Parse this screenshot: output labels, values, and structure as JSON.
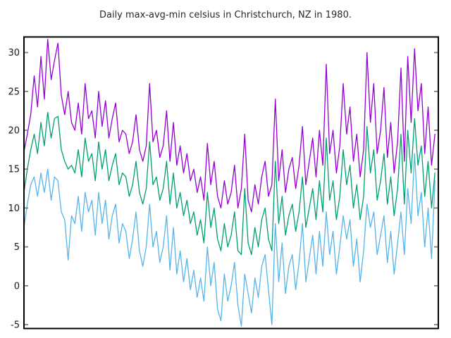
{
  "chart": {
    "title": "Daily max-avg-min celsius in Christchurch, NZ in 1980.",
    "background": "#ffffff",
    "border_color": "#000000",
    "tick_color": "#7f7f7f",
    "label_color": "#1a1a1a",
    "title_color": "#262626"
  },
  "chart_data": {
    "type": "line",
    "title": "Daily max-avg-min celsius in Christchurch, NZ in 1980.",
    "xlabel": "",
    "ylabel": "",
    "x_unit": "day of year 1980",
    "x_step_days": 3,
    "xlim": [
      0,
      366
    ],
    "ylim": [
      -5.5,
      32
    ],
    "yticks": [
      -5,
      0,
      5,
      10,
      15,
      20,
      25,
      30
    ],
    "x_tick_labels": [],
    "grid": false,
    "legend_position": "none",
    "series": [
      {
        "name": "max",
        "color": "#9400D3",
        "values": [
          17.2,
          19.5,
          22.0,
          27.0,
          23.0,
          29.5,
          24.0,
          31.7,
          26.5,
          29.0,
          31.2,
          24.5,
          22.0,
          25.0,
          21.0,
          20.0,
          23.5,
          19.5,
          26.0,
          21.5,
          22.5,
          19.0,
          25.0,
          20.5,
          23.8,
          19.0,
          21.5,
          23.5,
          18.5,
          20.0,
          19.5,
          17.0,
          18.5,
          22.0,
          17.5,
          16.0,
          18.0,
          26.0,
          18.5,
          20.0,
          16.5,
          18.0,
          22.5,
          16.0,
          21.0,
          15.5,
          18.0,
          14.5,
          17.0,
          13.5,
          15.0,
          12.0,
          14.0,
          11.0,
          18.3,
          13.0,
          16.0,
          11.5,
          10.0,
          13.5,
          10.5,
          12.0,
          15.5,
          10.0,
          12.5,
          19.5,
          11.0,
          9.5,
          13.0,
          10.5,
          14.0,
          16.0,
          11.5,
          13.0,
          24.0,
          13.5,
          17.5,
          12.0,
          15.0,
          16.5,
          12.5,
          15.5,
          20.5,
          13.0,
          16.0,
          19.0,
          14.0,
          20.0,
          15.5,
          28.5,
          17.0,
          20.0,
          14.5,
          18.0,
          26.0,
          19.5,
          23.0,
          16.0,
          19.5,
          14.0,
          17.5,
          30.0,
          21.0,
          26.0,
          17.0,
          20.0,
          25.5,
          16.5,
          21.0,
          14.5,
          18.5,
          28.0,
          16.0,
          29.5,
          21.0,
          30.5,
          22.5,
          26.0,
          17.0,
          23.0,
          15.5,
          19.5
        ]
      },
      {
        "name": "avg",
        "color": "#009E73",
        "values": [
          12.0,
          15.0,
          17.5,
          19.5,
          17.0,
          21.0,
          18.0,
          22.3,
          19.0,
          21.5,
          21.8,
          17.5,
          16.0,
          15.0,
          15.5,
          14.5,
          17.5,
          14.0,
          19.0,
          16.0,
          17.0,
          13.5,
          18.5,
          15.0,
          17.5,
          13.5,
          15.5,
          17.0,
          13.0,
          14.5,
          14.0,
          11.5,
          13.0,
          16.0,
          12.0,
          10.5,
          12.5,
          18.5,
          13.0,
          14.0,
          11.0,
          12.5,
          16.0,
          10.5,
          14.5,
          10.0,
          12.0,
          9.0,
          11.0,
          8.0,
          9.5,
          6.5,
          8.5,
          5.5,
          12.0,
          7.5,
          10.0,
          6.0,
          4.5,
          8.0,
          5.0,
          6.5,
          9.5,
          4.5,
          4.0,
          12.5,
          5.5,
          4.0,
          7.5,
          5.0,
          8.5,
          10.0,
          6.0,
          4.5,
          16.0,
          8.0,
          11.5,
          6.5,
          9.0,
          10.5,
          7.0,
          9.5,
          14.0,
          7.5,
          10.0,
          12.5,
          8.5,
          13.5,
          9.5,
          19.0,
          11.0,
          13.5,
          8.5,
          11.5,
          17.5,
          13.0,
          15.5,
          10.0,
          13.0,
          8.5,
          11.5,
          20.5,
          14.5,
          17.5,
          11.0,
          13.5,
          17.0,
          10.5,
          14.0,
          9.0,
          12.5,
          19.5,
          10.5,
          20.0,
          14.5,
          21.5,
          15.5,
          18.0,
          11.5,
          16.0,
          10.0,
          14.5
        ]
      },
      {
        "name": "min",
        "color": "#56B4E9",
        "values": [
          7.5,
          10.5,
          13.0,
          14.0,
          11.5,
          14.5,
          12.0,
          15.0,
          11.0,
          14.0,
          13.5,
          9.5,
          8.5,
          3.3,
          9.0,
          8.0,
          11.5,
          7.0,
          12.0,
          9.5,
          11.0,
          6.5,
          12.0,
          8.0,
          11.0,
          6.0,
          9.0,
          10.5,
          5.5,
          8.0,
          7.0,
          3.5,
          6.0,
          9.5,
          4.5,
          2.5,
          5.0,
          10.5,
          5.0,
          7.0,
          3.0,
          5.0,
          9.0,
          2.0,
          7.5,
          1.5,
          4.5,
          0.5,
          3.5,
          -0.5,
          2.0,
          -1.5,
          1.0,
          -2.0,
          5.0,
          0.0,
          3.0,
          -3.0,
          -4.5,
          1.5,
          -2.0,
          0.0,
          3.0,
          -2.5,
          -5.2,
          1.5,
          -1.0,
          -3.5,
          1.0,
          -1.5,
          2.5,
          4.0,
          -0.5,
          -5.0,
          8.0,
          0.5,
          5.5,
          -1.0,
          2.5,
          4.0,
          -0.5,
          3.0,
          8.0,
          0.5,
          3.5,
          6.5,
          1.5,
          7.0,
          2.5,
          9.5,
          4.0,
          7.0,
          1.5,
          5.0,
          9.0,
          6.0,
          8.5,
          2.5,
          6.0,
          0.5,
          4.5,
          10.5,
          7.5,
          9.5,
          4.0,
          6.5,
          9.0,
          3.0,
          7.0,
          1.5,
          5.5,
          9.5,
          4.0,
          12.5,
          8.0,
          17.0,
          9.0,
          12.0,
          5.0,
          10.0,
          3.5,
          13.5
        ]
      }
    ]
  }
}
